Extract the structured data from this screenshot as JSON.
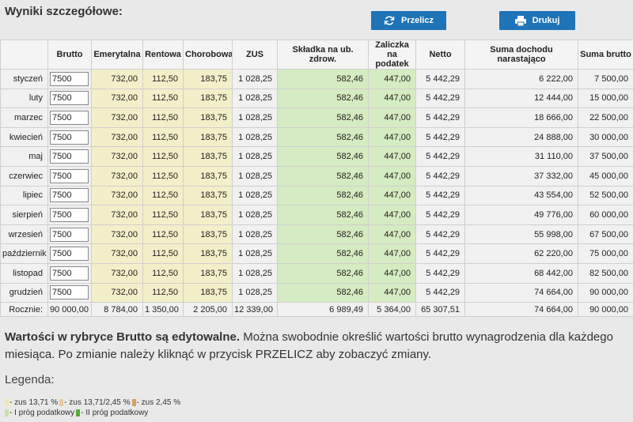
{
  "header": {
    "title": "Wyniki szczegółowe:",
    "buttons": [
      "Przelicz",
      "Drukuj"
    ]
  },
  "table": {
    "columns": [
      "",
      "Brutto",
      "Emerytalna",
      "Rentowa",
      "Chorobowa",
      "ZUS",
      "Składka na ub. zdrow.",
      "Zaliczka na podatek",
      "Netto",
      "Suma dochodu narastająco",
      "Suma brutto"
    ],
    "rows": [
      [
        "styczeń",
        "7500",
        "732,00",
        "112,50",
        "183,75",
        "1 028,25",
        "582,46",
        "447,00",
        "5 442,29",
        "6 222,00",
        "7 500,00"
      ],
      [
        "luty",
        "7500",
        "732,00",
        "112,50",
        "183,75",
        "1 028,25",
        "582,46",
        "447,00",
        "5 442,29",
        "12 444,00",
        "15 000,00"
      ],
      [
        "marzec",
        "7500",
        "732,00",
        "112,50",
        "183,75",
        "1 028,25",
        "582,46",
        "447,00",
        "5 442,29",
        "18 666,00",
        "22 500,00"
      ],
      [
        "kwiecień",
        "7500",
        "732,00",
        "112,50",
        "183,75",
        "1 028,25",
        "582,46",
        "447,00",
        "5 442,29",
        "24 888,00",
        "30 000,00"
      ],
      [
        "maj",
        "7500",
        "732,00",
        "112,50",
        "183,75",
        "1 028,25",
        "582,46",
        "447,00",
        "5 442,29",
        "31 110,00",
        "37 500,00"
      ],
      [
        "czerwiec",
        "7500",
        "732,00",
        "112,50",
        "183,75",
        "1 028,25",
        "582,46",
        "447,00",
        "5 442,29",
        "37 332,00",
        "45 000,00"
      ],
      [
        "lipiec",
        "7500",
        "732,00",
        "112,50",
        "183,75",
        "1 028,25",
        "582,46",
        "447,00",
        "5 442,29",
        "43 554,00",
        "52 500,00"
      ],
      [
        "sierpień",
        "7500",
        "732,00",
        "112,50",
        "183,75",
        "1 028,25",
        "582,46",
        "447,00",
        "5 442,29",
        "49 776,00",
        "60 000,00"
      ],
      [
        "wrzesień",
        "7500",
        "732,00",
        "112,50",
        "183,75",
        "1 028,25",
        "582,46",
        "447,00",
        "5 442,29",
        "55 998,00",
        "67 500,00"
      ],
      [
        "październik",
        "7500",
        "732,00",
        "112,50",
        "183,75",
        "1 028,25",
        "582,46",
        "447,00",
        "5 442,29",
        "62 220,00",
        "75 000,00"
      ],
      [
        "listopad",
        "7500",
        "732,00",
        "112,50",
        "183,75",
        "1 028,25",
        "582,46",
        "447,00",
        "5 442,29",
        "68 442,00",
        "82 500,00"
      ],
      [
        "grudzień",
        "7500",
        "732,00",
        "112,50",
        "183,75",
        "1 028,25",
        "582,46",
        "447,00",
        "5 442,29",
        "74 664,00",
        "90 000,00"
      ]
    ],
    "totals": [
      "Rocznie:",
      "90 000,00",
      "8 784,00",
      "1 350,00",
      "2 205,00",
      "12 339,00",
      "6 989,49",
      "5 364,00",
      "65 307,51",
      "74 664,00",
      "90 000,00"
    ]
  },
  "note": {
    "bold": "Wartości w rybryce Brutto są edytowalne.",
    "text": "Można swobodnie określić wartości brutto wynagrodzenia dla każdego miesiąca. Po zmianie należy kliknąć w przycisk PRZELICZ aby zobaczyć zmiany."
  },
  "legend": {
    "title": "Legenda:",
    "items": [
      {
        "label": "- zus 13,71 %",
        "color": "#efe9b0"
      },
      {
        "label": "- zus 13,71/2,45 %",
        "color": "#e8c9a0"
      },
      {
        "label": "- zus 2,45 %",
        "color": "#d9a060"
      },
      {
        "label": "- I próg podatkowy",
        "color": "#c6e3a8"
      },
      {
        "label": "- II próg podatkowy",
        "color": "#5aaa3a"
      }
    ]
  }
}
